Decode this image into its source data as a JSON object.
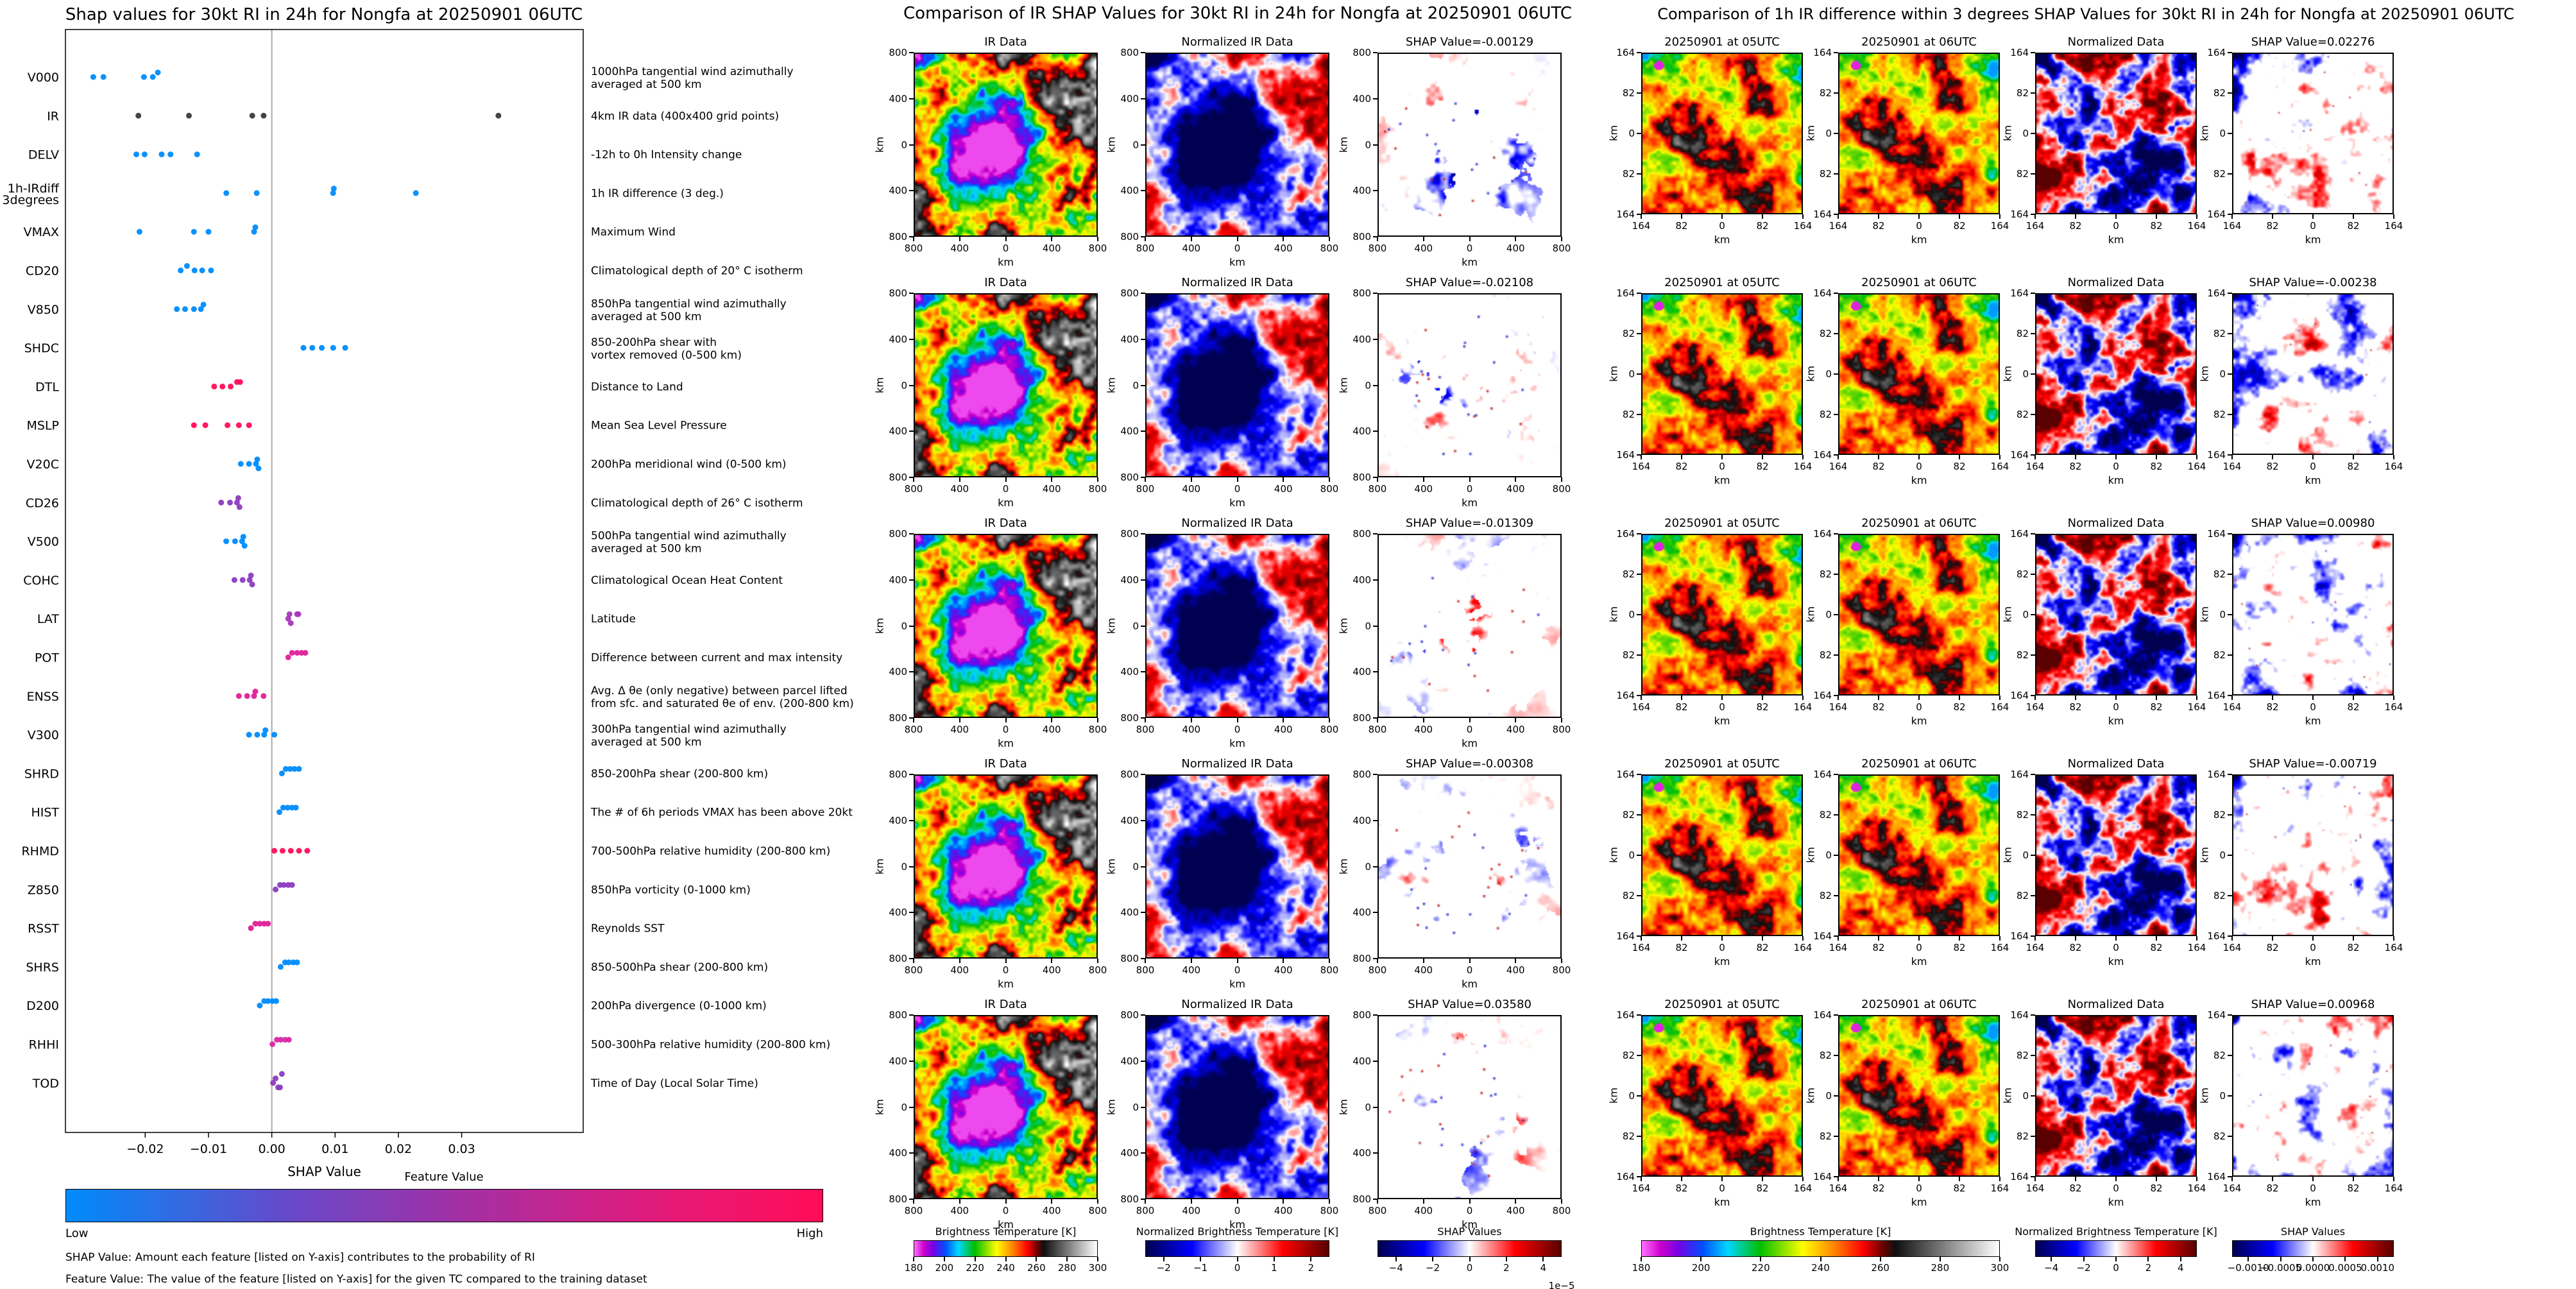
{
  "chart_data": [
    {
      "type": "scatter",
      "panel": "shap-beeswarm",
      "title": "Shap values for 30kt RI in 24h for Nongfa at 20250901 06UTC",
      "xlabel": "SHAP Value",
      "xlim": [
        -0.0326,
        0.0492
      ],
      "x_ticks": [
        -0.02,
        -0.01,
        0.0,
        0.01,
        0.02,
        0.03
      ],
      "x_tick_labels": [
        "−0.02",
        "−0.01",
        "0.00",
        "0.01",
        "0.02",
        "0.03"
      ],
      "colorbar": {
        "title": "Feature Value",
        "low": "Low",
        "high": "High",
        "colors": [
          "#008bfb",
          "#6948c8",
          "#aa2da0",
          "#e6197810",
          "#ff0d57"
        ]
      },
      "notes": [
        "SHAP Value: Amount each feature [listed on Y-axis] contributes to the probability of RI",
        "Feature Value: The value of the feature [listed on Y-axis] for the given TC compared to the training dataset"
      ],
      "features": [
        {
          "name": "V000",
          "desc": [
            "1000hPa tangential wind azimuthally",
            "averaged at 500 km"
          ],
          "color": "#008bfb",
          "values": [
            -0.0282,
            -0.0266,
            -0.0202,
            -0.0188,
            -0.018
          ]
        },
        {
          "name": "IR",
          "desc": [
            "4km IR data (400x400 grid points)"
          ],
          "color": "#3a3a3a",
          "values": [
            -0.02108,
            -0.01309,
            -0.00308,
            -0.00129,
            0.0358
          ]
        },
        {
          "name": "DELV",
          "desc": [
            "-12h to 0h Intensity change"
          ],
          "color": "#008bfb",
          "values": [
            -0.0214,
            -0.0201,
            -0.0174,
            -0.016,
            -0.0118
          ]
        },
        {
          "name": "1h-IRdiff",
          "name2": "3degrees",
          "desc": [
            "1h IR difference (3 deg.)"
          ],
          "color": "#008bfb",
          "values": [
            -0.00719,
            -0.00238,
            0.00968,
            0.0098,
            0.02276
          ]
        },
        {
          "name": "VMAX",
          "desc": [
            "Maximum Wind"
          ],
          "color": "#008bfb",
          "values": [
            -0.0209,
            -0.0123,
            -0.01,
            -0.0028,
            -0.0026
          ]
        },
        {
          "name": "CD20",
          "desc": [
            "Climatological depth of 20° C isotherm"
          ],
          "color": "#008bfb",
          "values": [
            -0.0144,
            -0.0134,
            -0.0122,
            -0.011,
            -0.0096
          ]
        },
        {
          "name": "V850",
          "desc": [
            "850hPa tangential wind azimuthally",
            "averaged at 500 km"
          ],
          "color": "#008bfb",
          "values": [
            -0.015,
            -0.0137,
            -0.0123,
            -0.0112,
            -0.0108
          ]
        },
        {
          "name": "SHDC",
          "desc": [
            "850-200hPa shear with",
            "vortex removed (0-500 km)"
          ],
          "color": "#008bfb",
          "values": [
            0.005,
            0.0064,
            0.0079,
            0.0097,
            0.0116
          ]
        },
        {
          "name": "DTL",
          "desc": [
            "Distance to Land"
          ],
          "color": "#ff0d57",
          "values": [
            -0.0091,
            -0.0078,
            -0.0065,
            -0.0055,
            -0.005
          ]
        },
        {
          "name": "MSLP",
          "desc": [
            "Mean Sea Level Pressure"
          ],
          "color": "#ff0d57",
          "values": [
            -0.0123,
            -0.0105,
            -0.007,
            -0.0052,
            -0.0036
          ]
        },
        {
          "name": "V20C",
          "desc": [
            "200hPa meridional wind (0-500 km)"
          ],
          "color": "#008bfb",
          "values": [
            -0.0049,
            -0.0036,
            -0.0025,
            -0.0023,
            -0.0021
          ]
        },
        {
          "name": "CD26",
          "desc": [
            "Climatological depth of 26° C isotherm"
          ],
          "color": "#8a3cc0",
          "values": [
            -0.008,
            -0.0066,
            -0.0055,
            -0.0053,
            -0.0051
          ]
        },
        {
          "name": "V500",
          "desc": [
            "500hPa tangential wind azimuthally",
            "averaged at 500 km"
          ],
          "color": "#008bfb",
          "values": [
            -0.0072,
            -0.0058,
            -0.0047,
            -0.0045,
            -0.0043
          ]
        },
        {
          "name": "COHC",
          "desc": [
            "Climatological Ocean Heat Content"
          ],
          "color": "#8a3cc0",
          "values": [
            -0.0059,
            -0.0046,
            -0.0035,
            -0.0033,
            -0.0031
          ]
        },
        {
          "name": "LAT",
          "desc": [
            "Latitude"
          ],
          "color": "#a636b8",
          "values": [
            0.0026,
            0.0028,
            0.003,
            0.004,
            0.0042
          ]
        },
        {
          "name": "POT",
          "desc": [
            "Difference between current and max intensity"
          ],
          "color": "#e01f9a",
          "values": [
            0.0026,
            0.0032,
            0.004,
            0.0047,
            0.0053
          ]
        },
        {
          "name": "ENSS",
          "desc": [
            "Avg. Δ θe (only negative) between parcel lifted",
            "from sfc. and saturated θe of env. (200-800 km)"
          ],
          "color": "#e01f9a",
          "values": [
            -0.0052,
            -0.0039,
            -0.0028,
            -0.0026,
            -0.0013
          ]
        },
        {
          "name": "V300",
          "desc": [
            "300hPa tangential wind azimuthally",
            "averaged at 500 km"
          ],
          "color": "#008bfb",
          "values": [
            -0.0036,
            -0.0023,
            -0.0012,
            -0.001,
            0.0004
          ]
        },
        {
          "name": "SHRD",
          "desc": [
            "850-200hPa shear (200-800 km)"
          ],
          "color": "#008bfb",
          "values": [
            0.0016,
            0.0022,
            0.0029,
            0.0036,
            0.0043
          ]
        },
        {
          "name": "HIST",
          "desc": [
            "The # of 6h periods VMAX has been above 20kt"
          ],
          "color": "#008bfb",
          "values": [
            0.0012,
            0.0018,
            0.0025,
            0.0032,
            0.0038
          ]
        },
        {
          "name": "RHMD",
          "desc": [
            "700-500hPa relative humidity (200-800 km)"
          ],
          "color": "#ff0d57",
          "values": [
            0.0004,
            0.0017,
            0.003,
            0.0043,
            0.0056
          ]
        },
        {
          "name": "Z850",
          "desc": [
            "850hPa vorticity (0-1000 km)"
          ],
          "color": "#8a3cc0",
          "values": [
            0.0006,
            0.0013,
            0.0019,
            0.0026,
            0.0032
          ]
        },
        {
          "name": "RSST",
          "desc": [
            "Reynolds SST"
          ],
          "color": "#e01f9a",
          "values": [
            -0.0033,
            -0.0026,
            -0.0019,
            -0.0012,
            -0.0006
          ]
        },
        {
          "name": "SHRS",
          "desc": [
            "850-500hPa shear (200-800 km)"
          ],
          "color": "#008bfb",
          "values": [
            0.0014,
            0.0021,
            0.0027,
            0.0034,
            0.004
          ]
        },
        {
          "name": "D200",
          "desc": [
            "200hPa divergence (0-1000 km)"
          ],
          "color": "#008bfb",
          "values": [
            -0.0019,
            -0.0012,
            -0.0006,
            0.0001,
            0.0007
          ]
        },
        {
          "name": "RHHI",
          "desc": [
            "500-300hPa relative humidity (200-800 km)"
          ],
          "color": "#d829a4",
          "values": [
            0.0001,
            0.0008,
            0.0014,
            0.0021,
            0.0027
          ]
        },
        {
          "name": "TOD",
          "desc": [
            "Time of Day (Local Solar Time)"
          ],
          "color": "#8a3cc0",
          "values": [
            0.0002,
            0.0006,
            0.001,
            0.0013,
            0.0016
          ]
        }
      ]
    },
    {
      "type": "heatmap",
      "panel": "ir-shap-grid",
      "title": "Comparison of IR SHAP Values for 30kt RI in 24h for Nongfa at 20250901 06UTC",
      "axis": {
        "label": "km",
        "ticks": [
          "800",
          "400",
          "0",
          "400",
          "800"
        ]
      },
      "shap_values": [
        -0.00129,
        -0.02108,
        -0.01309,
        -0.00308,
        0.0358
      ],
      "rows": [
        {
          "titles": [
            "IR Data",
            "Normalized IR Data",
            "SHAP Value=-0.00129"
          ]
        },
        {
          "titles": [
            "IR Data",
            "Normalized IR Data",
            "SHAP Value=-0.02108"
          ]
        },
        {
          "titles": [
            "IR Data",
            "Normalized IR Data",
            "SHAP Value=-0.01309"
          ]
        },
        {
          "titles": [
            "IR Data",
            "Normalized IR Data",
            "SHAP Value=-0.00308"
          ]
        },
        {
          "titles": [
            "IR Data",
            "Normalized IR Data",
            "SHAP Value=0.03580"
          ]
        }
      ],
      "colorbars": [
        {
          "title": "Brightness Temperature [K]",
          "cmap": "irbt",
          "ticks": [
            "180",
            "200",
            "220",
            "240",
            "260",
            "280",
            "300"
          ],
          "fracs": [
            0,
            0.1667,
            0.3333,
            0.5,
            0.6667,
            0.8333,
            1
          ]
        },
        {
          "title": "Normalized Brightness Temperature [K]",
          "cmap": "seismic",
          "ticks": [
            "−2",
            "−1",
            "0",
            "1",
            "2"
          ],
          "fracs": [
            0.1,
            0.3,
            0.5,
            0.7,
            0.9
          ]
        },
        {
          "title": "SHAP Values",
          "cmap": "seismic",
          "ticks": [
            "−4",
            "−2",
            "0",
            "2",
            "4"
          ],
          "fracs": [
            0.1,
            0.3,
            0.5,
            0.7,
            0.9
          ],
          "exponent": "1e−5"
        }
      ]
    },
    {
      "type": "heatmap",
      "panel": "irdiff-shap-grid",
      "title": "Comparison of 1h IR difference within 3 degrees SHAP Values for 30kt RI in 24h for Nongfa at 20250901 06UTC",
      "axis": {
        "label": "km",
        "ticks": [
          "164",
          "82",
          "0",
          "82",
          "164"
        ]
      },
      "shap_values": [
        0.02276,
        -0.00238,
        0.0098,
        -0.00719,
        0.00968
      ],
      "rows": [
        {
          "titles": [
            "20250901 at 05UTC",
            "20250901 at 06UTC",
            "Normalized Data",
            "SHAP Value=0.02276"
          ]
        },
        {
          "titles": [
            "20250901 at 05UTC",
            "20250901 at 06UTC",
            "Normalized Data",
            "SHAP Value=-0.00238"
          ]
        },
        {
          "titles": [
            "20250901 at 05UTC",
            "20250901 at 06UTC",
            "Normalized Data",
            "SHAP Value=0.00980"
          ]
        },
        {
          "titles": [
            "20250901 at 05UTC",
            "20250901 at 06UTC",
            "Normalized Data",
            "SHAP Value=-0.00719"
          ]
        },
        {
          "titles": [
            "20250901 at 05UTC",
            "20250901 at 06UTC",
            "Normalized Data",
            "SHAP Value=0.00968"
          ]
        }
      ],
      "colorbars": [
        {
          "title": "Brightness Temperature [K]",
          "cmap": "irbt",
          "ticks": [
            "180",
            "200",
            "220",
            "240",
            "260",
            "280",
            "300"
          ],
          "fracs": [
            0,
            0.1667,
            0.3333,
            0.5,
            0.6667,
            0.8333,
            1
          ]
        },
        {
          "title": "Normalized Brightness Temperature [K]",
          "cmap": "seismic",
          "ticks": [
            "−4",
            "−2",
            "0",
            "2",
            "4"
          ],
          "fracs": [
            0.1,
            0.3,
            0.5,
            0.7,
            0.9
          ]
        },
        {
          "title": "SHAP Values",
          "cmap": "seismic",
          "ticks": [
            "−0.0010",
            "−0.0005",
            "0.0000",
            "0.0005",
            "0.0010"
          ],
          "fracs": [
            0.1,
            0.3,
            0.5,
            0.7,
            0.9
          ]
        }
      ]
    }
  ]
}
